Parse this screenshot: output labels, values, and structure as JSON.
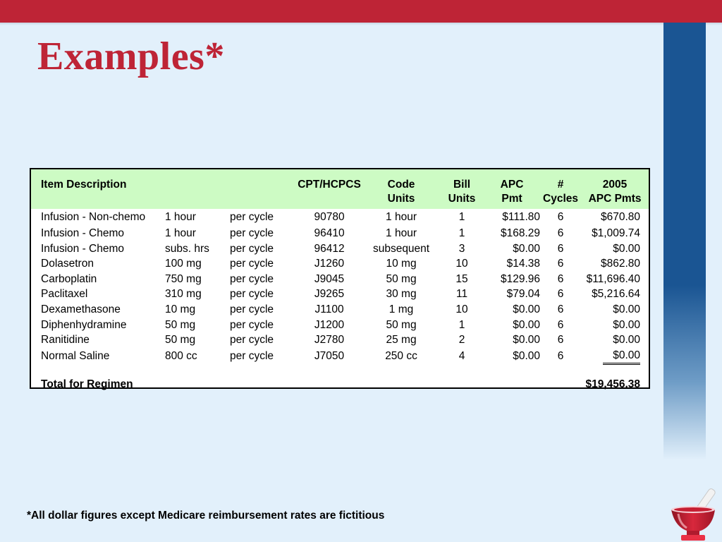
{
  "title": "Examples*",
  "table": {
    "headers": {
      "description": "Item Description",
      "cpt": "CPT/HCPCS",
      "code_units_1": "Code",
      "code_units_2": "Units",
      "bill_units_1": "Bill",
      "bill_units_2": "Units",
      "apc_pmt_1": "APC",
      "apc_pmt_2": "Pmt",
      "cycles_1": "#",
      "cycles_2": "Cycles",
      "apc_pmts_1": "2005",
      "apc_pmts_2": "APC Pmts"
    },
    "rows": [
      {
        "item": "Infusion - Non-chemo",
        "dose": "1 hour",
        "freq": "per cycle",
        "cpt": "90780",
        "code_units": "1 hour",
        "bill_units": "1",
        "apc_pmt": "$111.80",
        "cycles": "6",
        "total": "$670.80"
      },
      {
        "item": "Infusion - Chemo",
        "dose": "1 hour",
        "freq": "per cycle",
        "cpt": "96410",
        "code_units": "1 hour",
        "bill_units": "1",
        "apc_pmt": "$168.29",
        "cycles": "6",
        "total": "$1,009.74"
      },
      {
        "item": "Infusion - Chemo",
        "dose": "subs. hrs",
        "freq": "per cycle",
        "cpt": "96412",
        "code_units": "subsequent",
        "bill_units": "3",
        "apc_pmt": "$0.00",
        "cycles": "6",
        "total": "$0.00"
      },
      {
        "item": "Dolasetron",
        "dose": "100 mg",
        "freq": "per cycle",
        "cpt": "J1260",
        "code_units": "10 mg",
        "bill_units": "10",
        "apc_pmt": "$14.38",
        "cycles": "6",
        "total": "$862.80"
      },
      {
        "item": "Carboplatin",
        "dose": "750 mg",
        "freq": "per cycle",
        "cpt": "J9045",
        "code_units": "50 mg",
        "bill_units": "15",
        "apc_pmt": "$129.96",
        "cycles": "6",
        "total": "$11,696.40"
      },
      {
        "item": "Paclitaxel",
        "dose": "310 mg",
        "freq": "per cycle",
        "cpt": "J9265",
        "code_units": "30 mg",
        "bill_units": "11",
        "apc_pmt": "$79.04",
        "cycles": "6",
        "total": "$5,216.64"
      },
      {
        "item": "Dexamethasone",
        "dose": "10 mg",
        "freq": "per cycle",
        "cpt": "J1100",
        "code_units": "1 mg",
        "bill_units": "10",
        "apc_pmt": "$0.00",
        "cycles": "6",
        "total": "$0.00"
      },
      {
        "item": "Diphenhydramine",
        "dose": "50 mg",
        "freq": "per cycle",
        "cpt": "J1200",
        "code_units": "50  mg",
        "bill_units": "1",
        "apc_pmt": "$0.00",
        "cycles": "6",
        "total": "$0.00"
      },
      {
        "item": "Ranitidine",
        "dose": "50 mg",
        "freq": "per cycle",
        "cpt": "J2780",
        "code_units": "25 mg",
        "bill_units": "2",
        "apc_pmt": "$0.00",
        "cycles": "6",
        "total": "$0.00"
      },
      {
        "item": "Normal Saline",
        "dose": "800 cc",
        "freq": "per cycle",
        "cpt": "J7050",
        "code_units": "250 cc",
        "bill_units": "4",
        "apc_pmt": "$0.00",
        "cycles": "6",
        "total": "$0.00"
      }
    ],
    "total_label": "Total for Regimen",
    "total_value": "$19,456.38"
  },
  "footnote": "*All dollar figures except Medicare reimbursement rates are fictitious",
  "colors": {
    "accent_red": "#be2436",
    "sidebar_blue": "#1a5593",
    "header_green": "#cdfbc4",
    "background": "#e2f0fb"
  },
  "icons": [
    "mortar-pestle-icon"
  ]
}
